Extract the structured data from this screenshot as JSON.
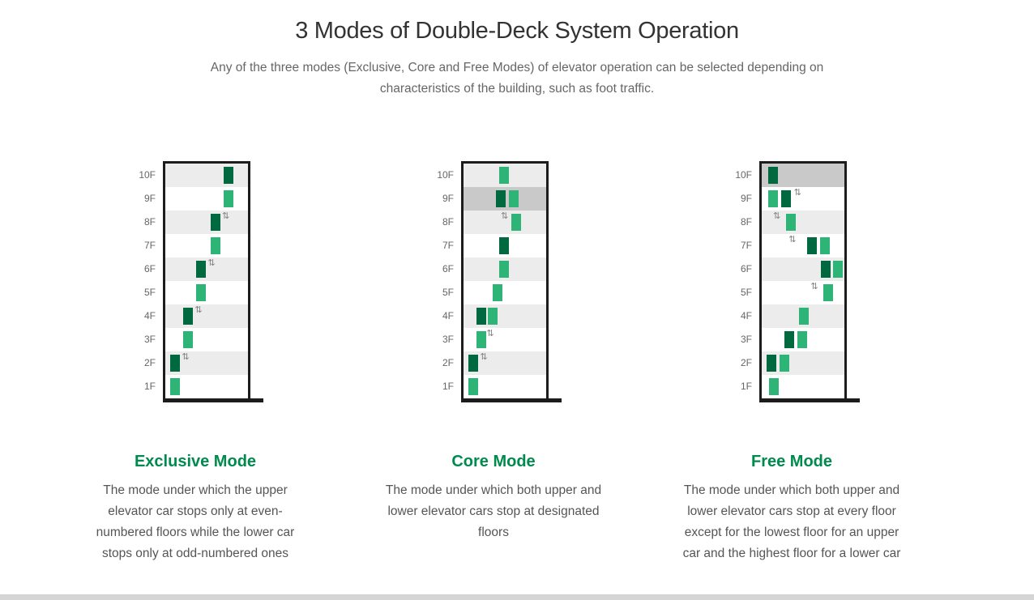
{
  "header": {
    "title": "3 Modes of Double-Deck System Operation",
    "subtitle": "Any of the three modes (Exclusive, Core and Free Modes) of elevator operation can be selected depending on characteristics of the building, such as foot traffic."
  },
  "colors": {
    "dark_car": "#00693f",
    "light_car": "#2eb476",
    "mode_title": "#008a4e",
    "row_shade": "#ececec",
    "row_highlight": "#c9c9c9",
    "structure": "#1c1c1c",
    "bottom_strip": "#d5d5d5"
  },
  "icons": {
    "transfer_arrows": "⇅"
  },
  "floors": [
    "10F",
    "9F",
    "8F",
    "7F",
    "6F",
    "5F",
    "4F",
    "3F",
    "2F",
    "1F"
  ],
  "modes": [
    {
      "name": "Exclusive Mode",
      "description": "The mode under which the upper elevator car stops only at even-numbered floors while the lower car stops only at odd-numbered ones",
      "highlight_floor": null,
      "cars": [
        {
          "floor": "10F",
          "col": 4.1,
          "tone": "dark"
        },
        {
          "floor": "9F",
          "col": 4.1,
          "tone": "light"
        },
        {
          "floor": "8F",
          "col": 3.1,
          "tone": "dark"
        },
        {
          "floor": "7F",
          "col": 3.1,
          "tone": "light"
        },
        {
          "floor": "6F",
          "col": 2,
          "tone": "dark"
        },
        {
          "floor": "5F",
          "col": 2,
          "tone": "light"
        },
        {
          "floor": "4F",
          "col": 1,
          "tone": "dark"
        },
        {
          "floor": "3F",
          "col": 1,
          "tone": "light"
        },
        {
          "floor": "2F",
          "col": 0,
          "tone": "dark"
        },
        {
          "floor": "1F",
          "col": 0,
          "tone": "light"
        }
      ],
      "arrows": [
        {
          "floor": "8F",
          "col": 4.0
        },
        {
          "floor": "6F",
          "col": 2.9
        },
        {
          "floor": "4F",
          "col": 1.9
        },
        {
          "floor": "2F",
          "col": 0.9
        }
      ]
    },
    {
      "name": "Core Mode",
      "description": "The mode under which both upper and lower elevator cars stop at designated floors",
      "highlight_floor": "9F",
      "cars": [
        {
          "floor": "10F",
          "col": 2.4,
          "tone": "light"
        },
        {
          "floor": "9F",
          "col": 2.1,
          "tone": "dark"
        },
        {
          "floor": "9F",
          "col": 3.1,
          "tone": "light"
        },
        {
          "floor": "8F",
          "col": 3.3,
          "tone": "light"
        },
        {
          "floor": "7F",
          "col": 2.4,
          "tone": "dark"
        },
        {
          "floor": "6F",
          "col": 2.4,
          "tone": "light"
        },
        {
          "floor": "5F",
          "col": 1.9,
          "tone": "light"
        },
        {
          "floor": "4F",
          "col": 0.6,
          "tone": "dark"
        },
        {
          "floor": "4F",
          "col": 1.5,
          "tone": "light"
        },
        {
          "floor": "3F",
          "col": 0.6,
          "tone": "light"
        },
        {
          "floor": "2F",
          "col": 0,
          "tone": "dark"
        },
        {
          "floor": "1F",
          "col": 0,
          "tone": "light"
        }
      ],
      "arrows": [
        {
          "floor": "8F",
          "col": 2.5
        },
        {
          "floor": "3F",
          "col": 1.4
        },
        {
          "floor": "2F",
          "col": 0.9
        }
      ]
    },
    {
      "name": "Free Mode",
      "description": "The mode under which both upper and lower elevator cars stop at every floor except for the lowest floor for an upper car and the highest floor for a lower car",
      "highlight_floor": "10F",
      "cars": [
        {
          "floor": "10F",
          "col": 0.1,
          "tone": "dark"
        },
        {
          "floor": "9F",
          "col": 0.1,
          "tone": "light"
        },
        {
          "floor": "9F",
          "col": 1.1,
          "tone": "dark"
        },
        {
          "floor": "8F",
          "col": 1.5,
          "tone": "light"
        },
        {
          "floor": "7F",
          "col": 3.1,
          "tone": "dark"
        },
        {
          "floor": "7F",
          "col": 4.1,
          "tone": "light"
        },
        {
          "floor": "6F",
          "col": 4.2,
          "tone": "dark"
        },
        {
          "floor": "6F",
          "col": 5.1,
          "tone": "light"
        },
        {
          "floor": "5F",
          "col": 4.4,
          "tone": "light"
        },
        {
          "floor": "4F",
          "col": 2.5,
          "tone": "light"
        },
        {
          "floor": "3F",
          "col": 1.4,
          "tone": "dark"
        },
        {
          "floor": "3F",
          "col": 2.4,
          "tone": "light"
        },
        {
          "floor": "2F",
          "col": 0,
          "tone": "dark"
        },
        {
          "floor": "2F",
          "col": 1,
          "tone": "light"
        },
        {
          "floor": "1F",
          "col": 0.2,
          "tone": "light"
        }
      ],
      "arrows": [
        {
          "floor": "9F",
          "col": 2.1
        },
        {
          "floor": "8F",
          "col": 0.5
        },
        {
          "floor": "7F",
          "col": 1.7
        },
        {
          "floor": "5F",
          "col": 3.4
        }
      ]
    }
  ]
}
